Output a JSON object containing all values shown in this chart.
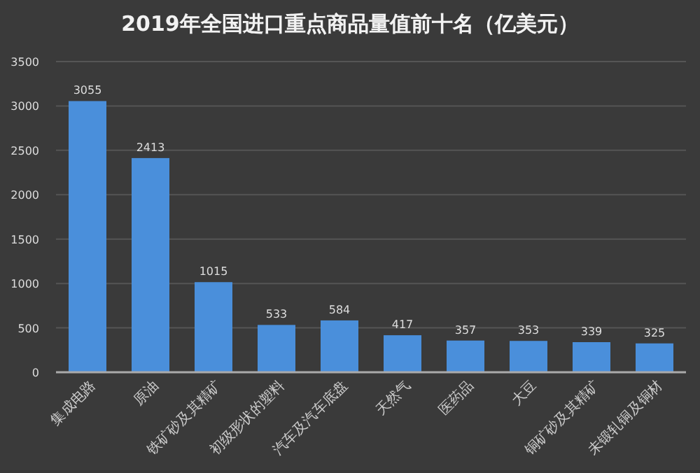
{
  "chart_data": {
    "type": "bar",
    "title": "2019年全国进口重点商品量值前十名（亿美元）",
    "categories": [
      "集成电路",
      "原油",
      "铁矿砂及其精矿",
      "初级形状的塑料",
      "汽车及汽车底盘",
      "天然气",
      "医药品",
      "大豆",
      "铜矿砂及其精矿",
      "未锻轧铜及铜材"
    ],
    "values": [
      3055,
      2413,
      1015,
      533,
      584,
      417,
      357,
      353,
      339,
      325
    ],
    "color": "#4a8fdb",
    "ylim": [
      0,
      3500
    ],
    "yticks": [
      0,
      500,
      1000,
      1500,
      2000,
      2500,
      3000,
      3500
    ],
    "grid": "y",
    "data_labels": true
  }
}
